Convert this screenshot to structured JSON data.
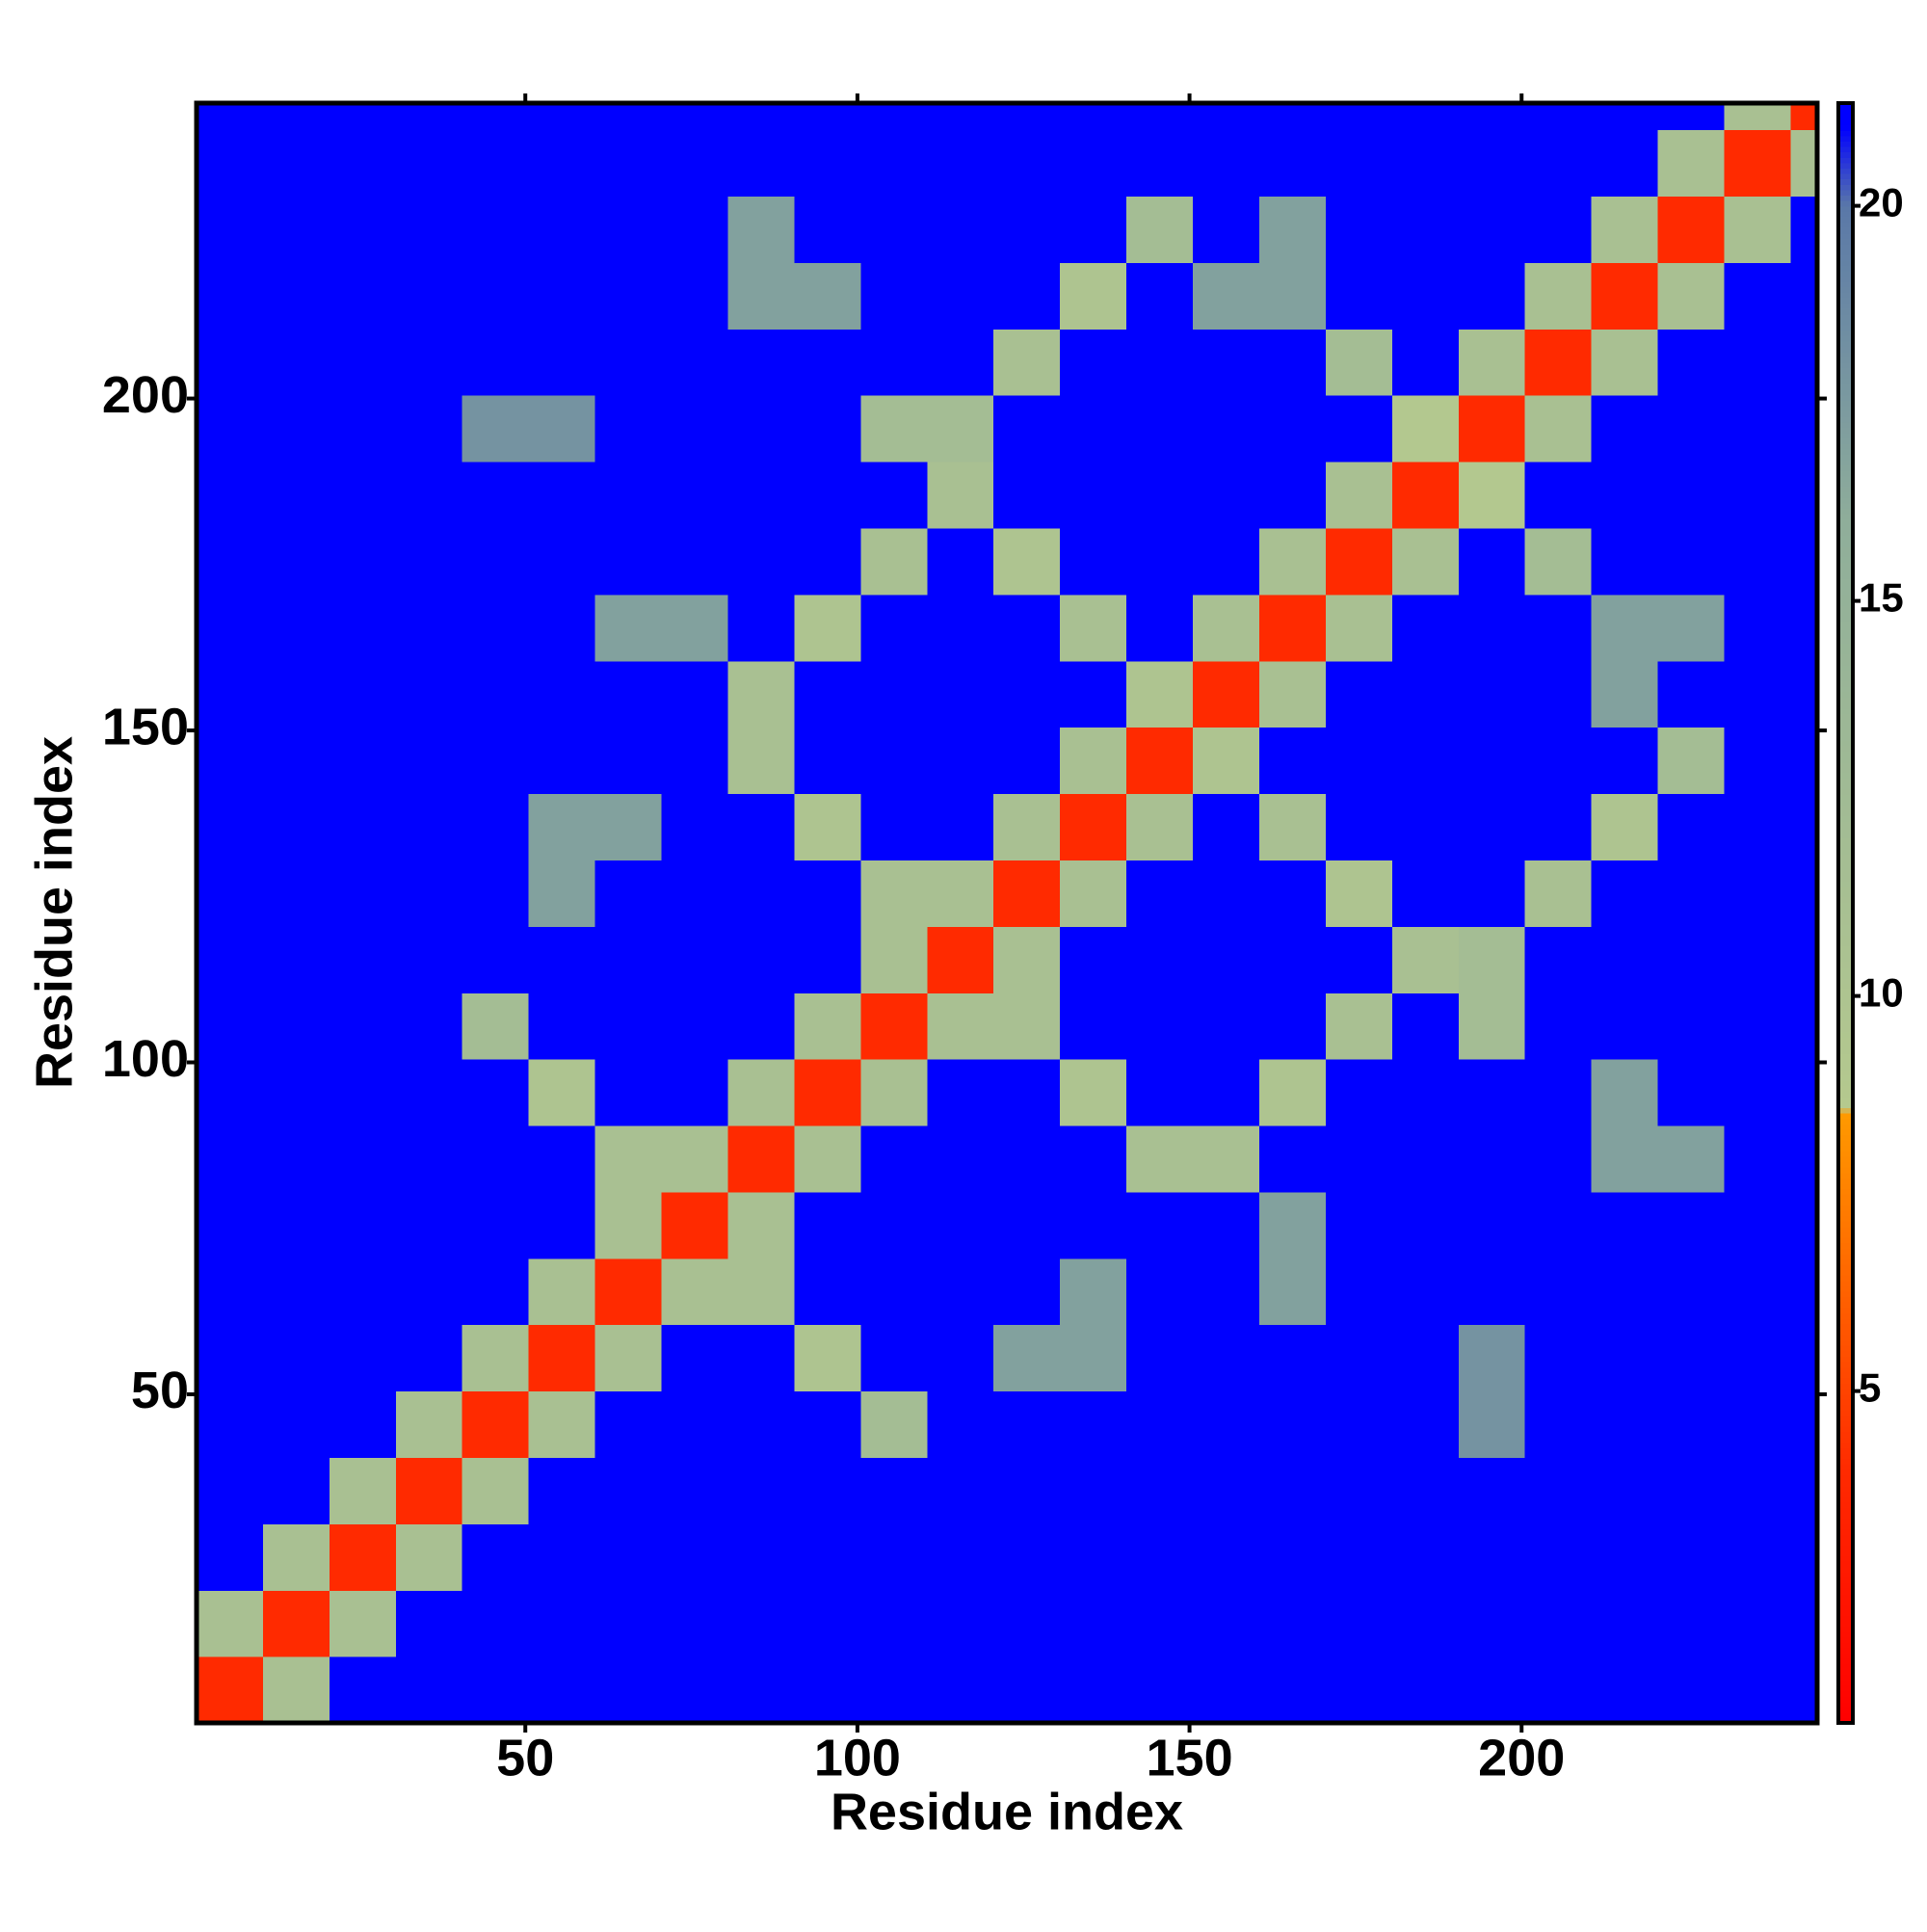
{
  "chart_data": {
    "type": "heatmap",
    "xlabel": "Residue index",
    "ylabel": "Residue index",
    "xlim": [
      0.5,
      244.5
    ],
    "ylim": [
      0.5,
      244.5
    ],
    "xticks": [
      50,
      100,
      150,
      200
    ],
    "yticks": [
      50,
      100,
      150,
      200
    ],
    "zlim": [
      0.8,
      21.3
    ],
    "zticks": [
      5,
      10,
      15,
      20
    ],
    "colorscale": [
      [
        0.8,
        "#ff0000"
      ],
      [
        4,
        "#ff2a00"
      ],
      [
        8.5,
        "#ff9900"
      ],
      [
        8.6,
        "#b5c98e"
      ],
      [
        16,
        "#8fae9a"
      ],
      [
        20,
        "#5a78a8"
      ],
      [
        21,
        "#0000ff"
      ],
      [
        21.3,
        "#0000ff"
      ]
    ],
    "x": [
      5.5,
      15.5,
      25.5,
      35.5,
      45.5,
      55.5,
      65.5,
      75.5,
      85.5,
      95.5,
      105.5,
      115.5,
      125.5,
      135.5,
      145.5,
      155.5,
      165.5,
      175.5,
      185.5,
      195.5,
      205.5,
      215.5,
      225.5,
      235.5,
      245.5
    ],
    "y": [
      5.5,
      15.5,
      25.5,
      35.5,
      45.5,
      55.5,
      65.5,
      75.5,
      85.5,
      95.5,
      105.5,
      115.5,
      125.5,
      135.5,
      145.5,
      155.5,
      165.5,
      175.5,
      185.5,
      195.5,
      205.5,
      215.5,
      225.5,
      235.5,
      245.5
    ],
    "z": [
      [
        4,
        11,
        21,
        21,
        21,
        21,
        21,
        21,
        21,
        21,
        21,
        21,
        21,
        21,
        21,
        21,
        21,
        21,
        21,
        21,
        21,
        21,
        21,
        21,
        21
      ],
      [
        11,
        4,
        11,
        21,
        21,
        21,
        21,
        21,
        21,
        21,
        21,
        21,
        21,
        21,
        21,
        21,
        21,
        21,
        21,
        21,
        21,
        21,
        21,
        21,
        21
      ],
      [
        21,
        11,
        4,
        11,
        21,
        21,
        21,
        21,
        21,
        21,
        21,
        21,
        21,
        21,
        21,
        21,
        21,
        21,
        21,
        21,
        21,
        21,
        21,
        21,
        21
      ],
      [
        21,
        21,
        11,
        4,
        11,
        21,
        21,
        21,
        21,
        21,
        21,
        21,
        21,
        21,
        21,
        21,
        21,
        21,
        21,
        21,
        21,
        21,
        21,
        21,
        21
      ],
      [
        21,
        21,
        21,
        11,
        4,
        11,
        21,
        21,
        21,
        21,
        12,
        21,
        21,
        21,
        21,
        21,
        21,
        21,
        21,
        18,
        21,
        21,
        21,
        21,
        21
      ],
      [
        21,
        21,
        21,
        21,
        11,
        4,
        11,
        21,
        21,
        10,
        21,
        21,
        17,
        17,
        21,
        21,
        21,
        21,
        21,
        18,
        21,
        21,
        21,
        21,
        21
      ],
      [
        21,
        21,
        21,
        21,
        21,
        11,
        4,
        11,
        11,
        21,
        21,
        21,
        21,
        17,
        21,
        21,
        17,
        21,
        21,
        21,
        21,
        21,
        21,
        21,
        21
      ],
      [
        21,
        21,
        21,
        21,
        21,
        21,
        11,
        4,
        11,
        21,
        21,
        21,
        21,
        21,
        21,
        21,
        17,
        21,
        21,
        21,
        21,
        21,
        21,
        21,
        21
      ],
      [
        21,
        21,
        21,
        21,
        21,
        21,
        11,
        11,
        4,
        11,
        21,
        21,
        21,
        21,
        11,
        11,
        21,
        21,
        21,
        21,
        21,
        17,
        17,
        21,
        21
      ],
      [
        21,
        21,
        21,
        21,
        21,
        10,
        21,
        21,
        11,
        4,
        11,
        21,
        21,
        10,
        21,
        21,
        10,
        21,
        21,
        21,
        21,
        17,
        21,
        21,
        21
      ],
      [
        21,
        21,
        21,
        21,
        12,
        21,
        21,
        21,
        21,
        11,
        4,
        11,
        11,
        21,
        21,
        21,
        21,
        11,
        21,
        12,
        21,
        21,
        21,
        21,
        21
      ],
      [
        21,
        21,
        21,
        21,
        21,
        21,
        21,
        21,
        21,
        21,
        11,
        4,
        11,
        21,
        21,
        21,
        21,
        21,
        11,
        12,
        21,
        21,
        21,
        21,
        21
      ],
      [
        21,
        21,
        21,
        21,
        21,
        17,
        21,
        21,
        21,
        21,
        11,
        11,
        4,
        11,
        21,
        21,
        21,
        10,
        21,
        21,
        11,
        21,
        21,
        21,
        21
      ],
      [
        21,
        21,
        21,
        21,
        21,
        17,
        17,
        21,
        21,
        10,
        21,
        21,
        11,
        4,
        11,
        21,
        11,
        21,
        21,
        21,
        21,
        10,
        21,
        21,
        21
      ],
      [
        21,
        21,
        21,
        21,
        21,
        21,
        21,
        21,
        11,
        21,
        21,
        21,
        21,
        11,
        4,
        10,
        21,
        21,
        21,
        21,
        21,
        21,
        12,
        21,
        21
      ],
      [
        21,
        21,
        21,
        21,
        21,
        21,
        21,
        21,
        11,
        21,
        21,
        21,
        21,
        21,
        10,
        4,
        11,
        21,
        21,
        21,
        21,
        17,
        21,
        21,
        21
      ],
      [
        21,
        21,
        21,
        21,
        21,
        21,
        17,
        17,
        21,
        10,
        21,
        21,
        21,
        11,
        21,
        11,
        4,
        11,
        21,
        21,
        21,
        17,
        17,
        21,
        21
      ],
      [
        21,
        21,
        21,
        21,
        21,
        21,
        21,
        21,
        21,
        21,
        11,
        21,
        10,
        21,
        21,
        21,
        11,
        4,
        11,
        21,
        12,
        21,
        21,
        21,
        21
      ],
      [
        21,
        21,
        21,
        21,
        21,
        21,
        21,
        21,
        21,
        21,
        21,
        11,
        21,
        21,
        21,
        21,
        21,
        11,
        4,
        9,
        21,
        21,
        21,
        21,
        21
      ],
      [
        21,
        21,
        21,
        21,
        18,
        18,
        21,
        21,
        21,
        21,
        12,
        12,
        21,
        21,
        21,
        21,
        21,
        21,
        9,
        4,
        11,
        21,
        21,
        21,
        21
      ],
      [
        21,
        21,
        21,
        21,
        21,
        21,
        21,
        21,
        21,
        21,
        21,
        21,
        11,
        21,
        21,
        21,
        21,
        12,
        21,
        11,
        4,
        11,
        21,
        21,
        21
      ],
      [
        21,
        21,
        21,
        21,
        21,
        21,
        21,
        21,
        17,
        17,
        21,
        21,
        21,
        10,
        21,
        17,
        17,
        21,
        21,
        21,
        11,
        4,
        11,
        21,
        21
      ],
      [
        21,
        21,
        21,
        21,
        21,
        21,
        21,
        21,
        17,
        21,
        21,
        21,
        21,
        21,
        12,
        21,
        17,
        21,
        21,
        21,
        21,
        11,
        4,
        11,
        21
      ],
      [
        21,
        21,
        21,
        21,
        21,
        21,
        21,
        21,
        21,
        21,
        21,
        21,
        21,
        21,
        21,
        21,
        21,
        21,
        21,
        21,
        21,
        21,
        11,
        4,
        11
      ],
      [
        21,
        21,
        21,
        21,
        21,
        21,
        21,
        21,
        21,
        21,
        21,
        21,
        21,
        21,
        21,
        21,
        21,
        21,
        21,
        21,
        21,
        21,
        21,
        11,
        4
      ]
    ]
  }
}
